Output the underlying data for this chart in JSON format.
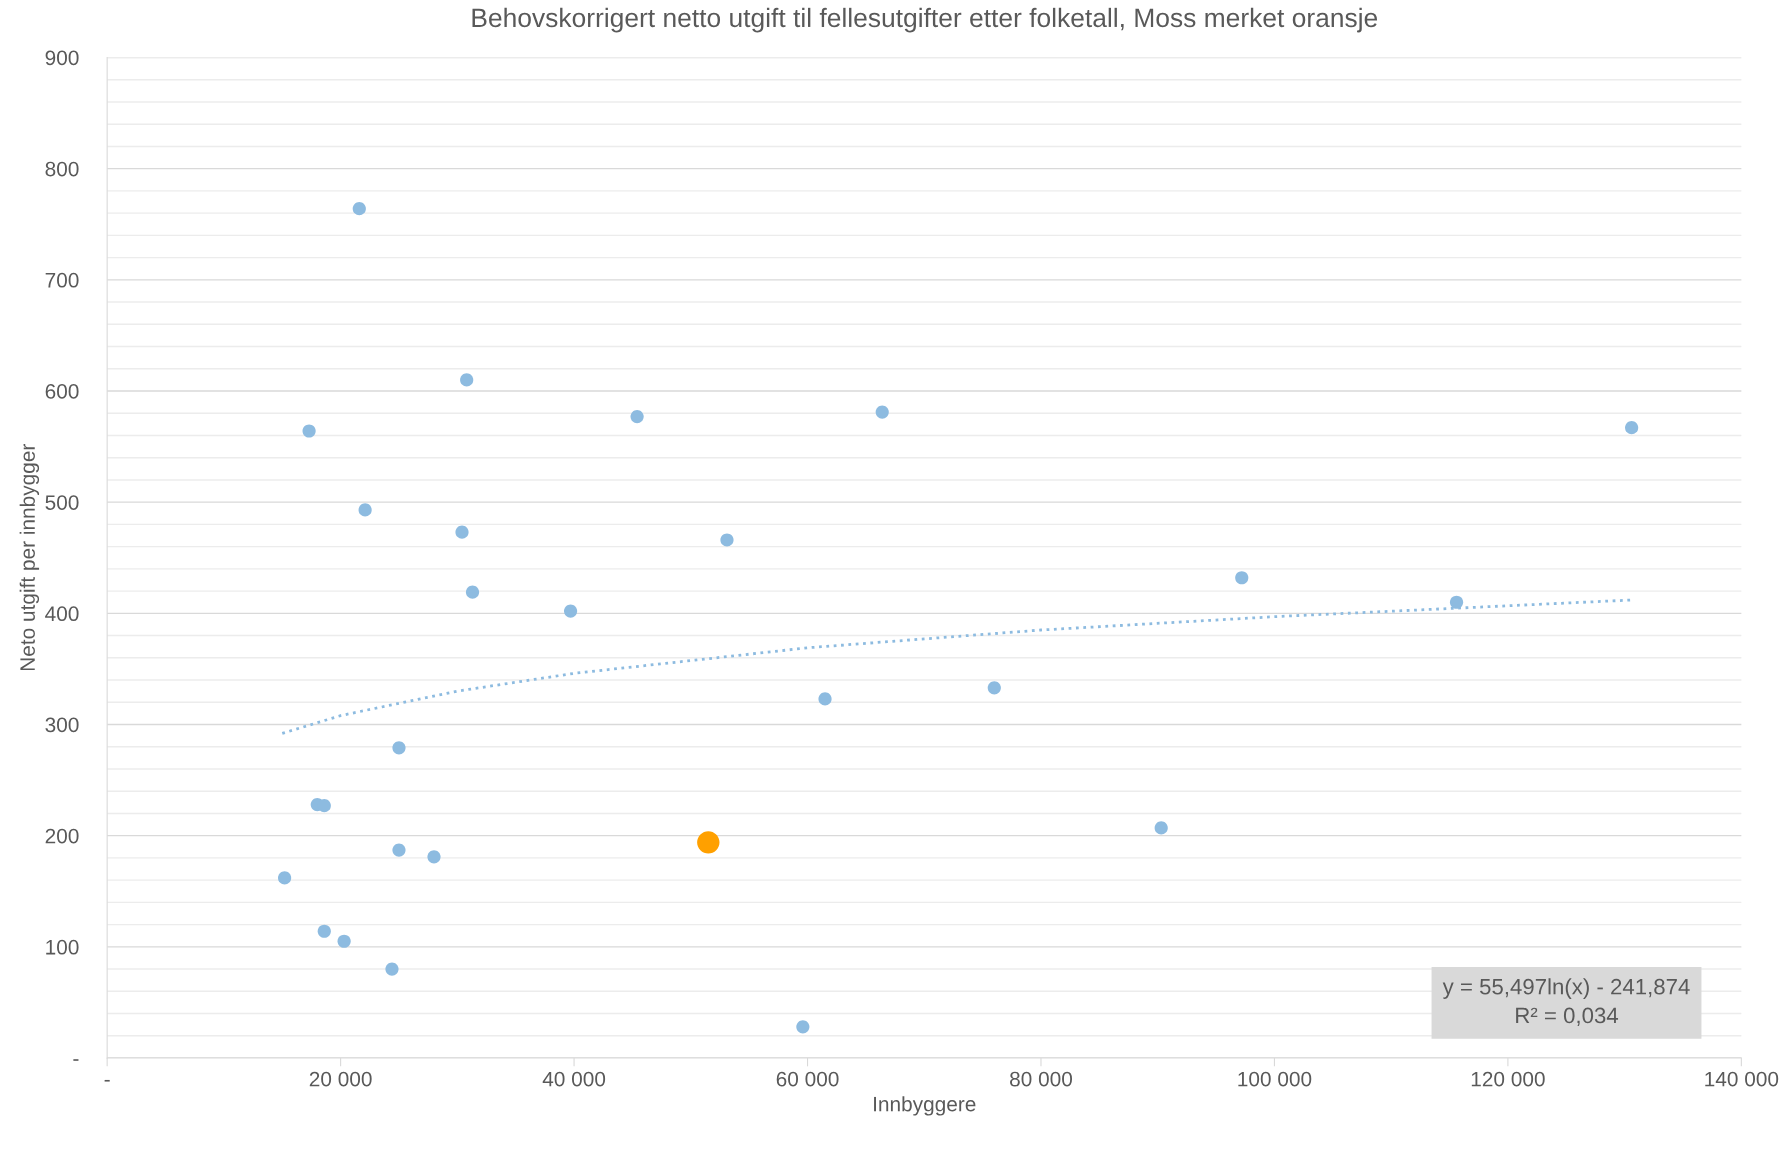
{
  "chart_data": {
    "type": "scatter",
    "title": "Behovskorrigert netto utgift til fellesutgifter etter folketall, Moss merket oransje",
    "xlabel": "Innbyggere",
    "ylabel": "Neto utgift per innbygger",
    "xlim": [
      0,
      140000
    ],
    "xticks": [
      {
        "value": 0,
        "label": "-"
      },
      {
        "value": 20000,
        "label": "20 000"
      },
      {
        "value": 40000,
        "label": "40 000"
      },
      {
        "value": 60000,
        "label": "60 000"
      },
      {
        "value": 80000,
        "label": "80 000"
      },
      {
        "value": 100000,
        "label": "100 000"
      },
      {
        "value": 120000,
        "label": "120 000"
      },
      {
        "value": 140000,
        "label": "140 000"
      }
    ],
    "ylim": [
      0,
      900
    ],
    "yticks": [
      {
        "value": 0,
        "label": "-"
      },
      {
        "value": 20,
        "label": null
      },
      {
        "value": 40,
        "label": null
      },
      {
        "value": 60,
        "label": null
      },
      {
        "value": 80,
        "label": null
      },
      100,
      {
        "value": 120,
        "label": null
      },
      {
        "value": 140,
        "label": null
      },
      {
        "value": 160,
        "label": null
      },
      {
        "value": 180,
        "label": null
      },
      200,
      {
        "value": 220,
        "label": null
      },
      {
        "value": 240,
        "label": null
      },
      {
        "value": 260,
        "label": null
      },
      {
        "value": 280,
        "label": null
      },
      300,
      {
        "value": 320,
        "label": null
      },
      {
        "value": 340,
        "label": null
      },
      {
        "value": 360,
        "label": null
      },
      {
        "value": 380,
        "label": null
      },
      400,
      {
        "value": 420,
        "label": null
      },
      {
        "value": 440,
        "label": null
      },
      {
        "value": 460,
        "label": null
      },
      {
        "value": 480,
        "label": null
      },
      500,
      {
        "value": 520,
        "label": null
      },
      {
        "value": 540,
        "label": null
      },
      {
        "value": 560,
        "label": null
      },
      {
        "value": 580,
        "label": null
      },
      600,
      {
        "value": 620,
        "label": null
      },
      {
        "value": 640,
        "label": null
      },
      {
        "value": 660,
        "label": null
      },
      {
        "value": 680,
        "label": null
      },
      700,
      {
        "value": 720,
        "label": null
      },
      {
        "value": 740,
        "label": null
      },
      {
        "value": 760,
        "label": null
      },
      {
        "value": 780,
        "label": null
      },
      800,
      {
        "value": 820,
        "label": null
      },
      {
        "value": 840,
        "label": null
      },
      {
        "value": 860,
        "label": null
      },
      {
        "value": 880,
        "label": null
      },
      900
    ],
    "grid": "y",
    "series": [
      {
        "marker": "circle",
        "color": "#8dbbe0",
        "x": [
          21600,
          30800,
          17300,
          45400,
          66400,
          130600,
          22100,
          30400,
          53100,
          97200,
          115600,
          31300,
          39700,
          61500,
          76000,
          25000,
          18000,
          18600,
          90300,
          25000,
          28000,
          15200,
          18600,
          20300,
          24400,
          59600
        ],
        "values": [
          764,
          610,
          564,
          577,
          581,
          567,
          493,
          473,
          466,
          432,
          410,
          419,
          402,
          323,
          333,
          279,
          228,
          227,
          207,
          187,
          181,
          162,
          114,
          105,
          80,
          28
        ]
      },
      {
        "marker": "circle",
        "color": "#ffa000",
        "x": [
          51500
        ],
        "values": [
          194
        ]
      },
      {
        "type": "line",
        "marker": "none",
        "color": "#8dbbe0",
        "line_style": "dotted",
        "x": [
          15000,
          20000,
          30000,
          40000,
          60000,
          80000,
          100000,
          130600
        ],
        "values": [
          292,
          308,
          330,
          346,
          369,
          385,
          397,
          412
        ]
      }
    ],
    "annotations": [
      "y = 55,497ln(x) - 241,874",
      "R² = 0,034"
    ]
  }
}
